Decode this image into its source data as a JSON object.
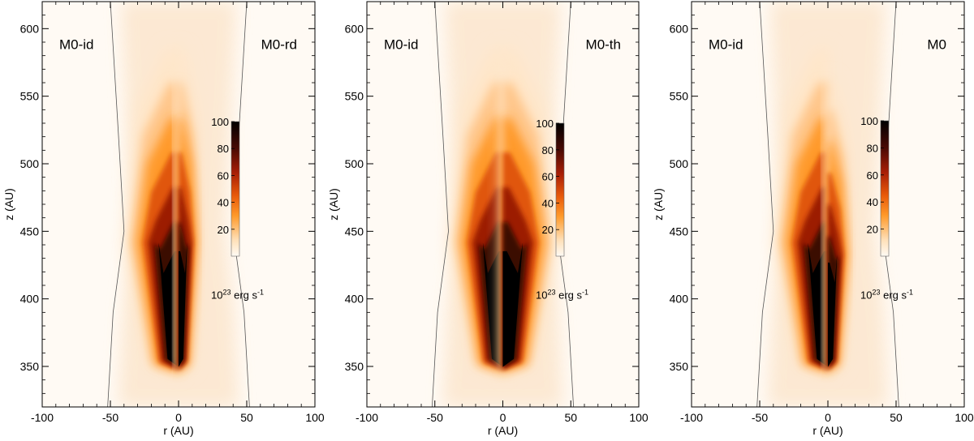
{
  "chart_data": [
    {
      "type": "heatmap",
      "left_label": "M0-id",
      "right_label": "M0-rd",
      "xlabel": "r (AU)",
      "ylabel": "z (AU)",
      "xlim": [
        -100,
        100
      ],
      "ylim": [
        320,
        620
      ],
      "xticks": [
        "-100",
        "-50",
        "0",
        "50",
        "100"
      ],
      "yticks": [
        "350",
        "400",
        "450",
        "500",
        "550",
        "600"
      ],
      "colorbar": {
        "ticks": [
          "20",
          "40",
          "60",
          "80",
          "100"
        ],
        "range": [
          0,
          100
        ],
        "unit_base": "10",
        "unit_exp": "23",
        "unit_text": "erg s",
        "unit_exp2": "-1"
      },
      "boundary": [
        [
          -52,
          320
        ],
        [
          -48,
          390
        ],
        [
          -40,
          450
        ],
        [
          -44,
          520
        ],
        [
          -50,
          620
        ],
        [
          52,
          320
        ],
        [
          48,
          390
        ],
        [
          40,
          450
        ],
        [
          44,
          520
        ],
        [
          50,
          620
        ]
      ],
      "left_emission": {
        "tip_z": 345,
        "top_z": 560,
        "max_r": 35
      },
      "right_emission": {
        "tip_z": 345,
        "top_z": 560,
        "max_r": 15
      }
    },
    {
      "type": "heatmap",
      "left_label": "M0-id",
      "right_label": "M0-th",
      "xlabel": "r (AU)",
      "ylabel": "z (AU)",
      "xlim": [
        -100,
        100
      ],
      "ylim": [
        320,
        620
      ],
      "xticks": [
        "-100",
        "-50",
        "0",
        "50",
        "100"
      ],
      "yticks": [
        "350",
        "400",
        "450",
        "500",
        "550",
        "600"
      ],
      "colorbar": {
        "ticks": [
          "20",
          "40",
          "60",
          "80",
          "100"
        ],
        "range": [
          0,
          100
        ],
        "unit_base": "10",
        "unit_exp": "23",
        "unit_text": "erg s",
        "unit_exp2": "-1"
      },
      "boundary": [
        [
          -52,
          320
        ],
        [
          -48,
          390
        ],
        [
          -40,
          450
        ],
        [
          -44,
          520
        ],
        [
          -50,
          620
        ],
        [
          52,
          320
        ],
        [
          48,
          390
        ],
        [
          40,
          450
        ],
        [
          44,
          520
        ],
        [
          50,
          620
        ]
      ],
      "left_emission": {
        "tip_z": 345,
        "top_z": 560,
        "max_r": 35
      },
      "right_emission": {
        "tip_z": 345,
        "top_z": 560,
        "max_r": 35
      }
    },
    {
      "type": "heatmap",
      "left_label": "M0-id",
      "right_label": "M0",
      "xlabel": "r (AU)",
      "ylabel": "z (AU)",
      "xlim": [
        -100,
        100
      ],
      "ylim": [
        320,
        620
      ],
      "xticks": [
        "-100",
        "-50",
        "0",
        "50",
        "100"
      ],
      "yticks": [
        "350",
        "400",
        "450",
        "500",
        "550",
        "600"
      ],
      "colorbar": {
        "ticks": [
          "20",
          "40",
          "60",
          "80",
          "100"
        ],
        "range": [
          0,
          100
        ],
        "unit_base": "10",
        "unit_exp": "23",
        "unit_text": "erg s",
        "unit_exp2": "-1"
      },
      "boundary": [
        [
          -52,
          320
        ],
        [
          -48,
          390
        ],
        [
          -40,
          450
        ],
        [
          -44,
          520
        ],
        [
          -50,
          620
        ],
        [
          52,
          320
        ],
        [
          48,
          390
        ],
        [
          40,
          450
        ],
        [
          44,
          520
        ],
        [
          50,
          620
        ]
      ],
      "left_emission": {
        "tip_z": 345,
        "top_z": 560,
        "max_r": 35
      },
      "right_emission": {
        "tip_z": 345,
        "top_z": 540,
        "max_r": 16
      }
    }
  ]
}
